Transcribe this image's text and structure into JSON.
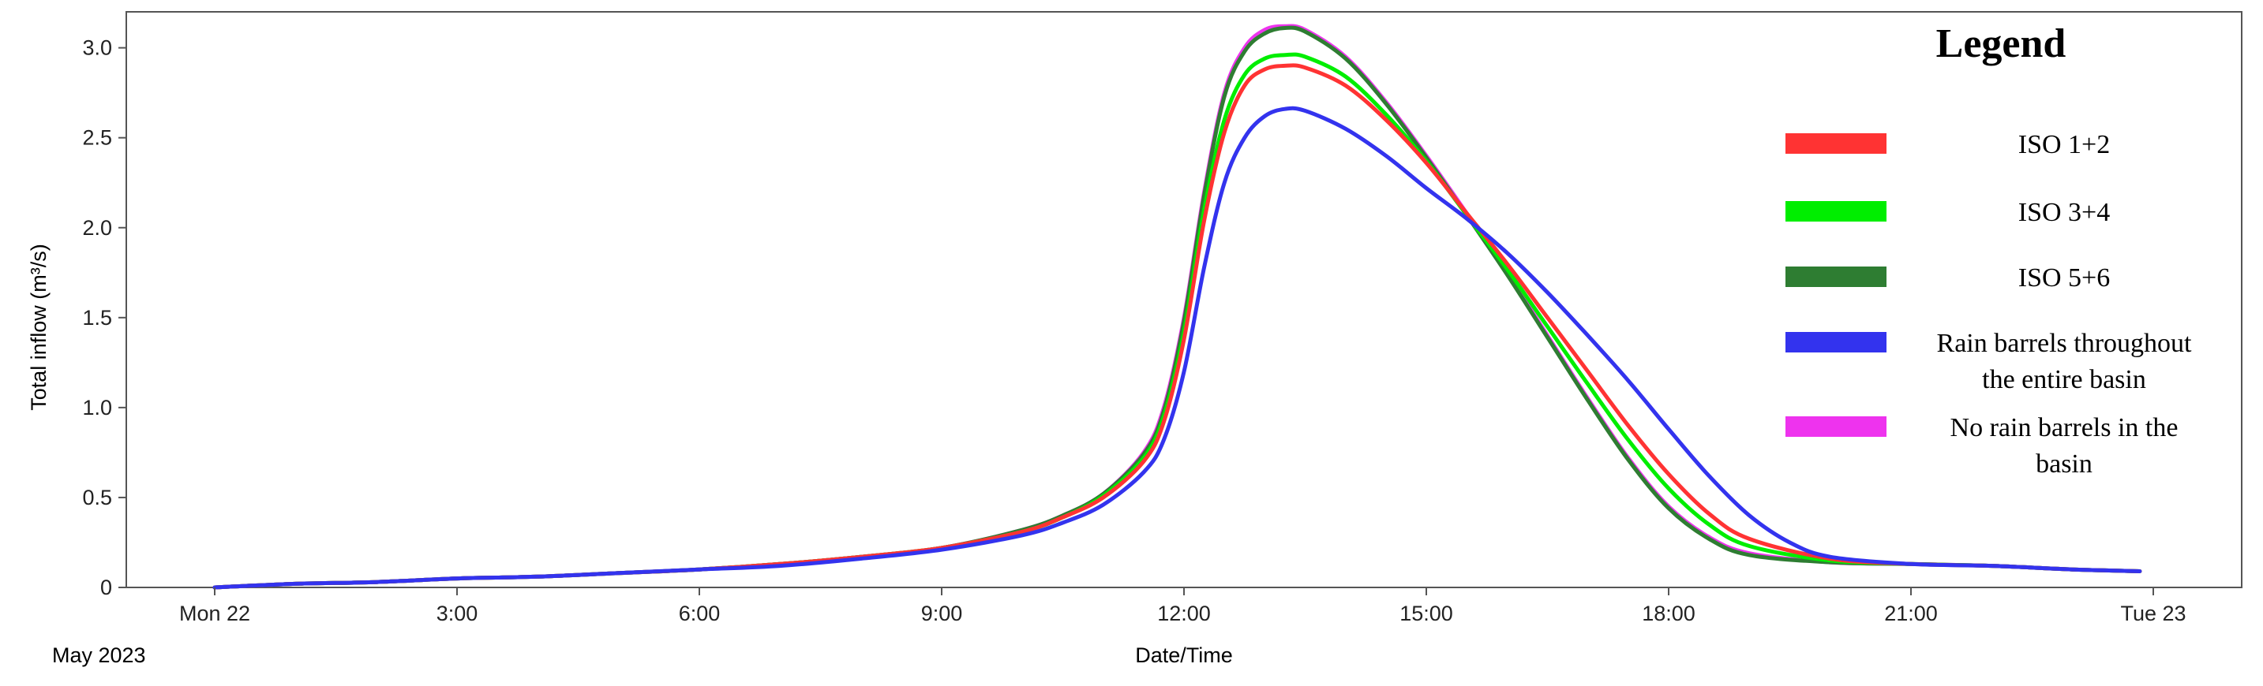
{
  "chart_data": {
    "type": "line",
    "title": "",
    "xlabel": "Date/Time",
    "ylabel": "Total inflow (m³/s)",
    "date_label": "May 2023",
    "xlim": [
      "2023-05-22T00:00",
      "2023-05-23T00:00"
    ],
    "ylim": [
      0,
      3.2
    ],
    "grid": false,
    "x_ticks": [
      {
        "t": "2023-05-22T00:00",
        "label": "Mon 22"
      },
      {
        "t": "2023-05-22T03:00",
        "label": "3:00"
      },
      {
        "t": "2023-05-22T06:00",
        "label": "6:00"
      },
      {
        "t": "2023-05-22T09:00",
        "label": "9:00"
      },
      {
        "t": "2023-05-22T12:00",
        "label": "12:00"
      },
      {
        "t": "2023-05-22T15:00",
        "label": "15:00"
      },
      {
        "t": "2023-05-22T18:00",
        "label": "18:00"
      },
      {
        "t": "2023-05-22T21:00",
        "label": "21:00"
      },
      {
        "t": "2023-05-23T00:00",
        "label": "Tue 23"
      }
    ],
    "y_ticks": [
      {
        "v": 0,
        "label": "0"
      },
      {
        "v": 0.5,
        "label": "0.5"
      },
      {
        "v": 1.0,
        "label": "1.0"
      },
      {
        "v": 1.5,
        "label": "1.5"
      },
      {
        "v": 2.0,
        "label": "2.0"
      },
      {
        "v": 2.5,
        "label": "2.5"
      },
      {
        "v": 3.0,
        "label": "3.0"
      }
    ],
    "legend": {
      "title": "Legend",
      "placement": "top-right"
    },
    "series": [
      {
        "name": "No rain barrels in the basin",
        "name_lines": [
          "No rain barrels in the",
          "basin"
        ],
        "color": "#ee33ee",
        "legend_order": 5,
        "draw_order": 1,
        "points": [
          [
            "2023-05-22T00:00",
            0
          ],
          [
            "2023-05-22T01:00",
            0.02
          ],
          [
            "2023-05-22T02:00",
            0.03
          ],
          [
            "2023-05-22T03:00",
            0.05
          ],
          [
            "2023-05-22T04:00",
            0.06
          ],
          [
            "2023-05-22T05:00",
            0.08
          ],
          [
            "2023-05-22T06:00",
            0.1
          ],
          [
            "2023-05-22T07:00",
            0.13
          ],
          [
            "2023-05-22T08:00",
            0.17
          ],
          [
            "2023-05-22T09:00",
            0.22
          ],
          [
            "2023-05-22T10:00",
            0.32
          ],
          [
            "2023-05-22T10:30",
            0.4
          ],
          [
            "2023-05-22T11:00",
            0.52
          ],
          [
            "2023-05-22T11:30",
            0.75
          ],
          [
            "2023-05-22T11:45",
            1.0
          ],
          [
            "2023-05-22T12:00",
            1.5
          ],
          [
            "2023-05-22T12:15",
            2.2
          ],
          [
            "2023-05-22T12:30",
            2.75
          ],
          [
            "2023-05-22T12:45",
            3.0
          ],
          [
            "2023-05-22T13:00",
            3.1
          ],
          [
            "2023-05-22T13:15",
            3.12
          ],
          [
            "2023-05-22T13:30",
            3.1
          ],
          [
            "2023-05-22T14:00",
            2.95
          ],
          [
            "2023-05-22T14:30",
            2.7
          ],
          [
            "2023-05-22T15:00",
            2.4
          ],
          [
            "2023-05-22T15:30",
            2.08
          ],
          [
            "2023-05-22T16:00",
            1.75
          ],
          [
            "2023-05-22T16:30",
            1.4
          ],
          [
            "2023-05-22T17:00",
            1.05
          ],
          [
            "2023-05-22T17:30",
            0.72
          ],
          [
            "2023-05-22T18:00",
            0.45
          ],
          [
            "2023-05-22T18:30",
            0.28
          ],
          [
            "2023-05-22T19:00",
            0.19
          ],
          [
            "2023-05-22T20:00",
            0.14
          ],
          [
            "2023-05-22T21:00",
            0.13
          ],
          [
            "2023-05-22T22:00",
            0.12
          ],
          [
            "2023-05-22T23:00",
            0.1
          ],
          [
            "2023-05-22T23:50",
            0.09
          ]
        ]
      },
      {
        "name": "ISO 5+6",
        "color": "#2e7d32",
        "legend_order": 3,
        "draw_order": 2,
        "points": [
          [
            "2023-05-22T00:00",
            0
          ],
          [
            "2023-05-22T01:00",
            0.02
          ],
          [
            "2023-05-22T02:00",
            0.03
          ],
          [
            "2023-05-22T03:00",
            0.05
          ],
          [
            "2023-05-22T04:00",
            0.06
          ],
          [
            "2023-05-22T05:00",
            0.08
          ],
          [
            "2023-05-22T06:00",
            0.1
          ],
          [
            "2023-05-22T07:00",
            0.13
          ],
          [
            "2023-05-22T08:00",
            0.17
          ],
          [
            "2023-05-22T09:00",
            0.22
          ],
          [
            "2023-05-22T10:00",
            0.32
          ],
          [
            "2023-05-22T10:30",
            0.4
          ],
          [
            "2023-05-22T11:00",
            0.52
          ],
          [
            "2023-05-22T11:30",
            0.74
          ],
          [
            "2023-05-22T11:45",
            0.98
          ],
          [
            "2023-05-22T12:00",
            1.48
          ],
          [
            "2023-05-22T12:15",
            2.18
          ],
          [
            "2023-05-22T12:30",
            2.73
          ],
          [
            "2023-05-22T12:45",
            2.98
          ],
          [
            "2023-05-22T13:00",
            3.08
          ],
          [
            "2023-05-22T13:15",
            3.11
          ],
          [
            "2023-05-22T13:30",
            3.09
          ],
          [
            "2023-05-22T14:00",
            2.94
          ],
          [
            "2023-05-22T14:30",
            2.69
          ],
          [
            "2023-05-22T15:00",
            2.39
          ],
          [
            "2023-05-22T15:30",
            2.07
          ],
          [
            "2023-05-22T16:00",
            1.74
          ],
          [
            "2023-05-22T16:30",
            1.39
          ],
          [
            "2023-05-22T17:00",
            1.04
          ],
          [
            "2023-05-22T17:30",
            0.71
          ],
          [
            "2023-05-22T18:00",
            0.44
          ],
          [
            "2023-05-22T18:30",
            0.27
          ],
          [
            "2023-05-22T19:00",
            0.18
          ],
          [
            "2023-05-22T20:00",
            0.14
          ],
          [
            "2023-05-22T21:00",
            0.13
          ],
          [
            "2023-05-22T22:00",
            0.12
          ],
          [
            "2023-05-22T23:00",
            0.1
          ],
          [
            "2023-05-22T23:50",
            0.09
          ]
        ]
      },
      {
        "name": "ISO 3+4",
        "color": "#00ee00",
        "legend_order": 2,
        "draw_order": 3,
        "points": [
          [
            "2023-05-22T00:00",
            0
          ],
          [
            "2023-05-22T01:00",
            0.02
          ],
          [
            "2023-05-22T02:00",
            0.03
          ],
          [
            "2023-05-22T03:00",
            0.05
          ],
          [
            "2023-05-22T04:00",
            0.06
          ],
          [
            "2023-05-22T05:00",
            0.08
          ],
          [
            "2023-05-22T06:00",
            0.1
          ],
          [
            "2023-05-22T07:00",
            0.13
          ],
          [
            "2023-05-22T08:00",
            0.17
          ],
          [
            "2023-05-22T09:00",
            0.22
          ],
          [
            "2023-05-22T10:00",
            0.31
          ],
          [
            "2023-05-22T10:30",
            0.39
          ],
          [
            "2023-05-22T11:00",
            0.51
          ],
          [
            "2023-05-22T11:30",
            0.72
          ],
          [
            "2023-05-22T11:45",
            0.95
          ],
          [
            "2023-05-22T12:00",
            1.42
          ],
          [
            "2023-05-22T12:15",
            2.1
          ],
          [
            "2023-05-22T12:30",
            2.6
          ],
          [
            "2023-05-22T12:45",
            2.85
          ],
          [
            "2023-05-22T13:00",
            2.94
          ],
          [
            "2023-05-22T13:15",
            2.96
          ],
          [
            "2023-05-22T13:30",
            2.95
          ],
          [
            "2023-05-22T14:00",
            2.84
          ],
          [
            "2023-05-22T14:30",
            2.63
          ],
          [
            "2023-05-22T15:00",
            2.37
          ],
          [
            "2023-05-22T15:30",
            2.07
          ],
          [
            "2023-05-22T16:00",
            1.77
          ],
          [
            "2023-05-22T16:30",
            1.45
          ],
          [
            "2023-05-22T17:00",
            1.13
          ],
          [
            "2023-05-22T17:30",
            0.82
          ],
          [
            "2023-05-22T18:00",
            0.55
          ],
          [
            "2023-05-22T18:30",
            0.35
          ],
          [
            "2023-05-22T19:00",
            0.23
          ],
          [
            "2023-05-22T20:00",
            0.15
          ],
          [
            "2023-05-22T21:00",
            0.13
          ],
          [
            "2023-05-22T22:00",
            0.12
          ],
          [
            "2023-05-22T23:00",
            0.1
          ],
          [
            "2023-05-22T23:50",
            0.09
          ]
        ]
      },
      {
        "name": "ISO 1+2",
        "color": "#ff3333",
        "legend_order": 1,
        "draw_order": 4,
        "points": [
          [
            "2023-05-22T00:00",
            0
          ],
          [
            "2023-05-22T01:00",
            0.02
          ],
          [
            "2023-05-22T02:00",
            0.03
          ],
          [
            "2023-05-22T03:00",
            0.05
          ],
          [
            "2023-05-22T04:00",
            0.06
          ],
          [
            "2023-05-22T05:00",
            0.08
          ],
          [
            "2023-05-22T06:00",
            0.1
          ],
          [
            "2023-05-22T07:00",
            0.13
          ],
          [
            "2023-05-22T08:00",
            0.17
          ],
          [
            "2023-05-22T09:00",
            0.22
          ],
          [
            "2023-05-22T10:00",
            0.31
          ],
          [
            "2023-05-22T10:30",
            0.39
          ],
          [
            "2023-05-22T11:00",
            0.5
          ],
          [
            "2023-05-22T11:30",
            0.7
          ],
          [
            "2023-05-22T11:45",
            0.92
          ],
          [
            "2023-05-22T12:00",
            1.38
          ],
          [
            "2023-05-22T12:15",
            2.04
          ],
          [
            "2023-05-22T12:30",
            2.53
          ],
          [
            "2023-05-22T12:45",
            2.79
          ],
          [
            "2023-05-22T13:00",
            2.88
          ],
          [
            "2023-05-22T13:15",
            2.9
          ],
          [
            "2023-05-22T13:30",
            2.89
          ],
          [
            "2023-05-22T14:00",
            2.79
          ],
          [
            "2023-05-22T14:30",
            2.6
          ],
          [
            "2023-05-22T15:00",
            2.36
          ],
          [
            "2023-05-22T15:30",
            2.08
          ],
          [
            "2023-05-22T16:00",
            1.8
          ],
          [
            "2023-05-22T16:30",
            1.5
          ],
          [
            "2023-05-22T17:00",
            1.2
          ],
          [
            "2023-05-22T17:30",
            0.9
          ],
          [
            "2023-05-22T18:00",
            0.63
          ],
          [
            "2023-05-22T18:30",
            0.41
          ],
          [
            "2023-05-22T19:00",
            0.27
          ],
          [
            "2023-05-22T20:00",
            0.16
          ],
          [
            "2023-05-22T21:00",
            0.13
          ],
          [
            "2023-05-22T22:00",
            0.12
          ],
          [
            "2023-05-22T23:00",
            0.1
          ],
          [
            "2023-05-22T23:50",
            0.09
          ]
        ]
      },
      {
        "name": "Rain barrels throughout the entire basin",
        "name_lines": [
          "Rain barrels throughout",
          "the entire basin"
        ],
        "color": "#3333ee",
        "legend_order": 4,
        "draw_order": 5,
        "points": [
          [
            "2023-05-22T00:00",
            0
          ],
          [
            "2023-05-22T01:00",
            0.02
          ],
          [
            "2023-05-22T02:00",
            0.03
          ],
          [
            "2023-05-22T03:00",
            0.05
          ],
          [
            "2023-05-22T04:00",
            0.06
          ],
          [
            "2023-05-22T05:00",
            0.08
          ],
          [
            "2023-05-22T06:00",
            0.1
          ],
          [
            "2023-05-22T07:00",
            0.12
          ],
          [
            "2023-05-22T08:00",
            0.16
          ],
          [
            "2023-05-22T09:00",
            0.21
          ],
          [
            "2023-05-22T10:00",
            0.29
          ],
          [
            "2023-05-22T10:30",
            0.36
          ],
          [
            "2023-05-22T11:00",
            0.46
          ],
          [
            "2023-05-22T11:30",
            0.64
          ],
          [
            "2023-05-22T11:45",
            0.82
          ],
          [
            "2023-05-22T12:00",
            1.2
          ],
          [
            "2023-05-22T12:15",
            1.78
          ],
          [
            "2023-05-22T12:30",
            2.25
          ],
          [
            "2023-05-22T12:45",
            2.5
          ],
          [
            "2023-05-22T13:00",
            2.62
          ],
          [
            "2023-05-22T13:15",
            2.66
          ],
          [
            "2023-05-22T13:30",
            2.65
          ],
          [
            "2023-05-22T14:00",
            2.55
          ],
          [
            "2023-05-22T14:30",
            2.4
          ],
          [
            "2023-05-22T15:00",
            2.22
          ],
          [
            "2023-05-22T15:30",
            2.05
          ],
          [
            "2023-05-22T16:00",
            1.86
          ],
          [
            "2023-05-22T16:30",
            1.64
          ],
          [
            "2023-05-22T17:00",
            1.4
          ],
          [
            "2023-05-22T17:30",
            1.15
          ],
          [
            "2023-05-22T18:00",
            0.88
          ],
          [
            "2023-05-22T18:30",
            0.62
          ],
          [
            "2023-05-22T19:00",
            0.4
          ],
          [
            "2023-05-22T19:30",
            0.25
          ],
          [
            "2023-05-22T20:00",
            0.17
          ],
          [
            "2023-05-22T21:00",
            0.13
          ],
          [
            "2023-05-22T22:00",
            0.12
          ],
          [
            "2023-05-22T23:00",
            0.1
          ],
          [
            "2023-05-22T23:50",
            0.09
          ]
        ]
      }
    ]
  }
}
